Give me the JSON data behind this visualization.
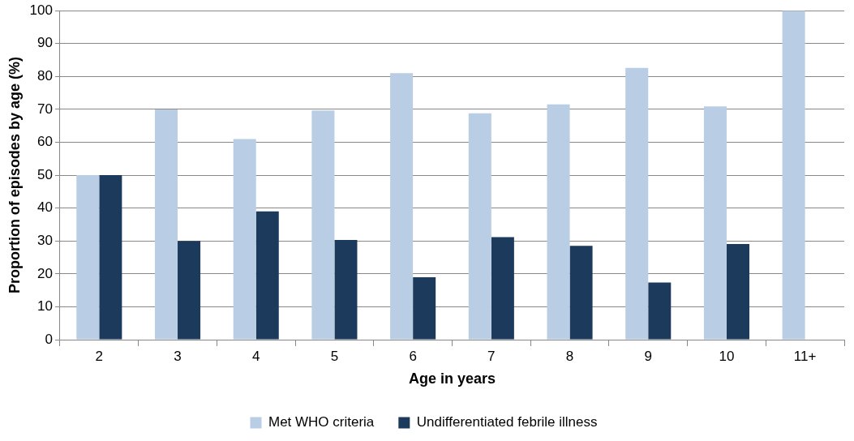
{
  "chart_data": {
    "type": "bar",
    "xlabel": "Age in years",
    "ylabel": "Proportion of episodes by age (%)",
    "categories": [
      "2",
      "3",
      "4",
      "5",
      "6",
      "7",
      "8",
      "9",
      "10",
      "11+"
    ],
    "series": [
      {
        "name": "Met WHO criteria",
        "color": "#b9cde4",
        "values": [
          50,
          70,
          61,
          69.7,
          81,
          68.8,
          71.5,
          82.6,
          70.9,
          100
        ]
      },
      {
        "name": "Undifferentiated febrile illness",
        "color": "#1b3a5c",
        "values": [
          50,
          30,
          39,
          30.3,
          19,
          31.2,
          28.5,
          17.4,
          29.1,
          0
        ]
      }
    ],
    "ylim": [
      0,
      100
    ],
    "yticks": [
      0,
      10,
      20,
      30,
      40,
      50,
      60,
      70,
      80,
      90,
      100
    ],
    "grid": "y",
    "legend": "bottom"
  }
}
